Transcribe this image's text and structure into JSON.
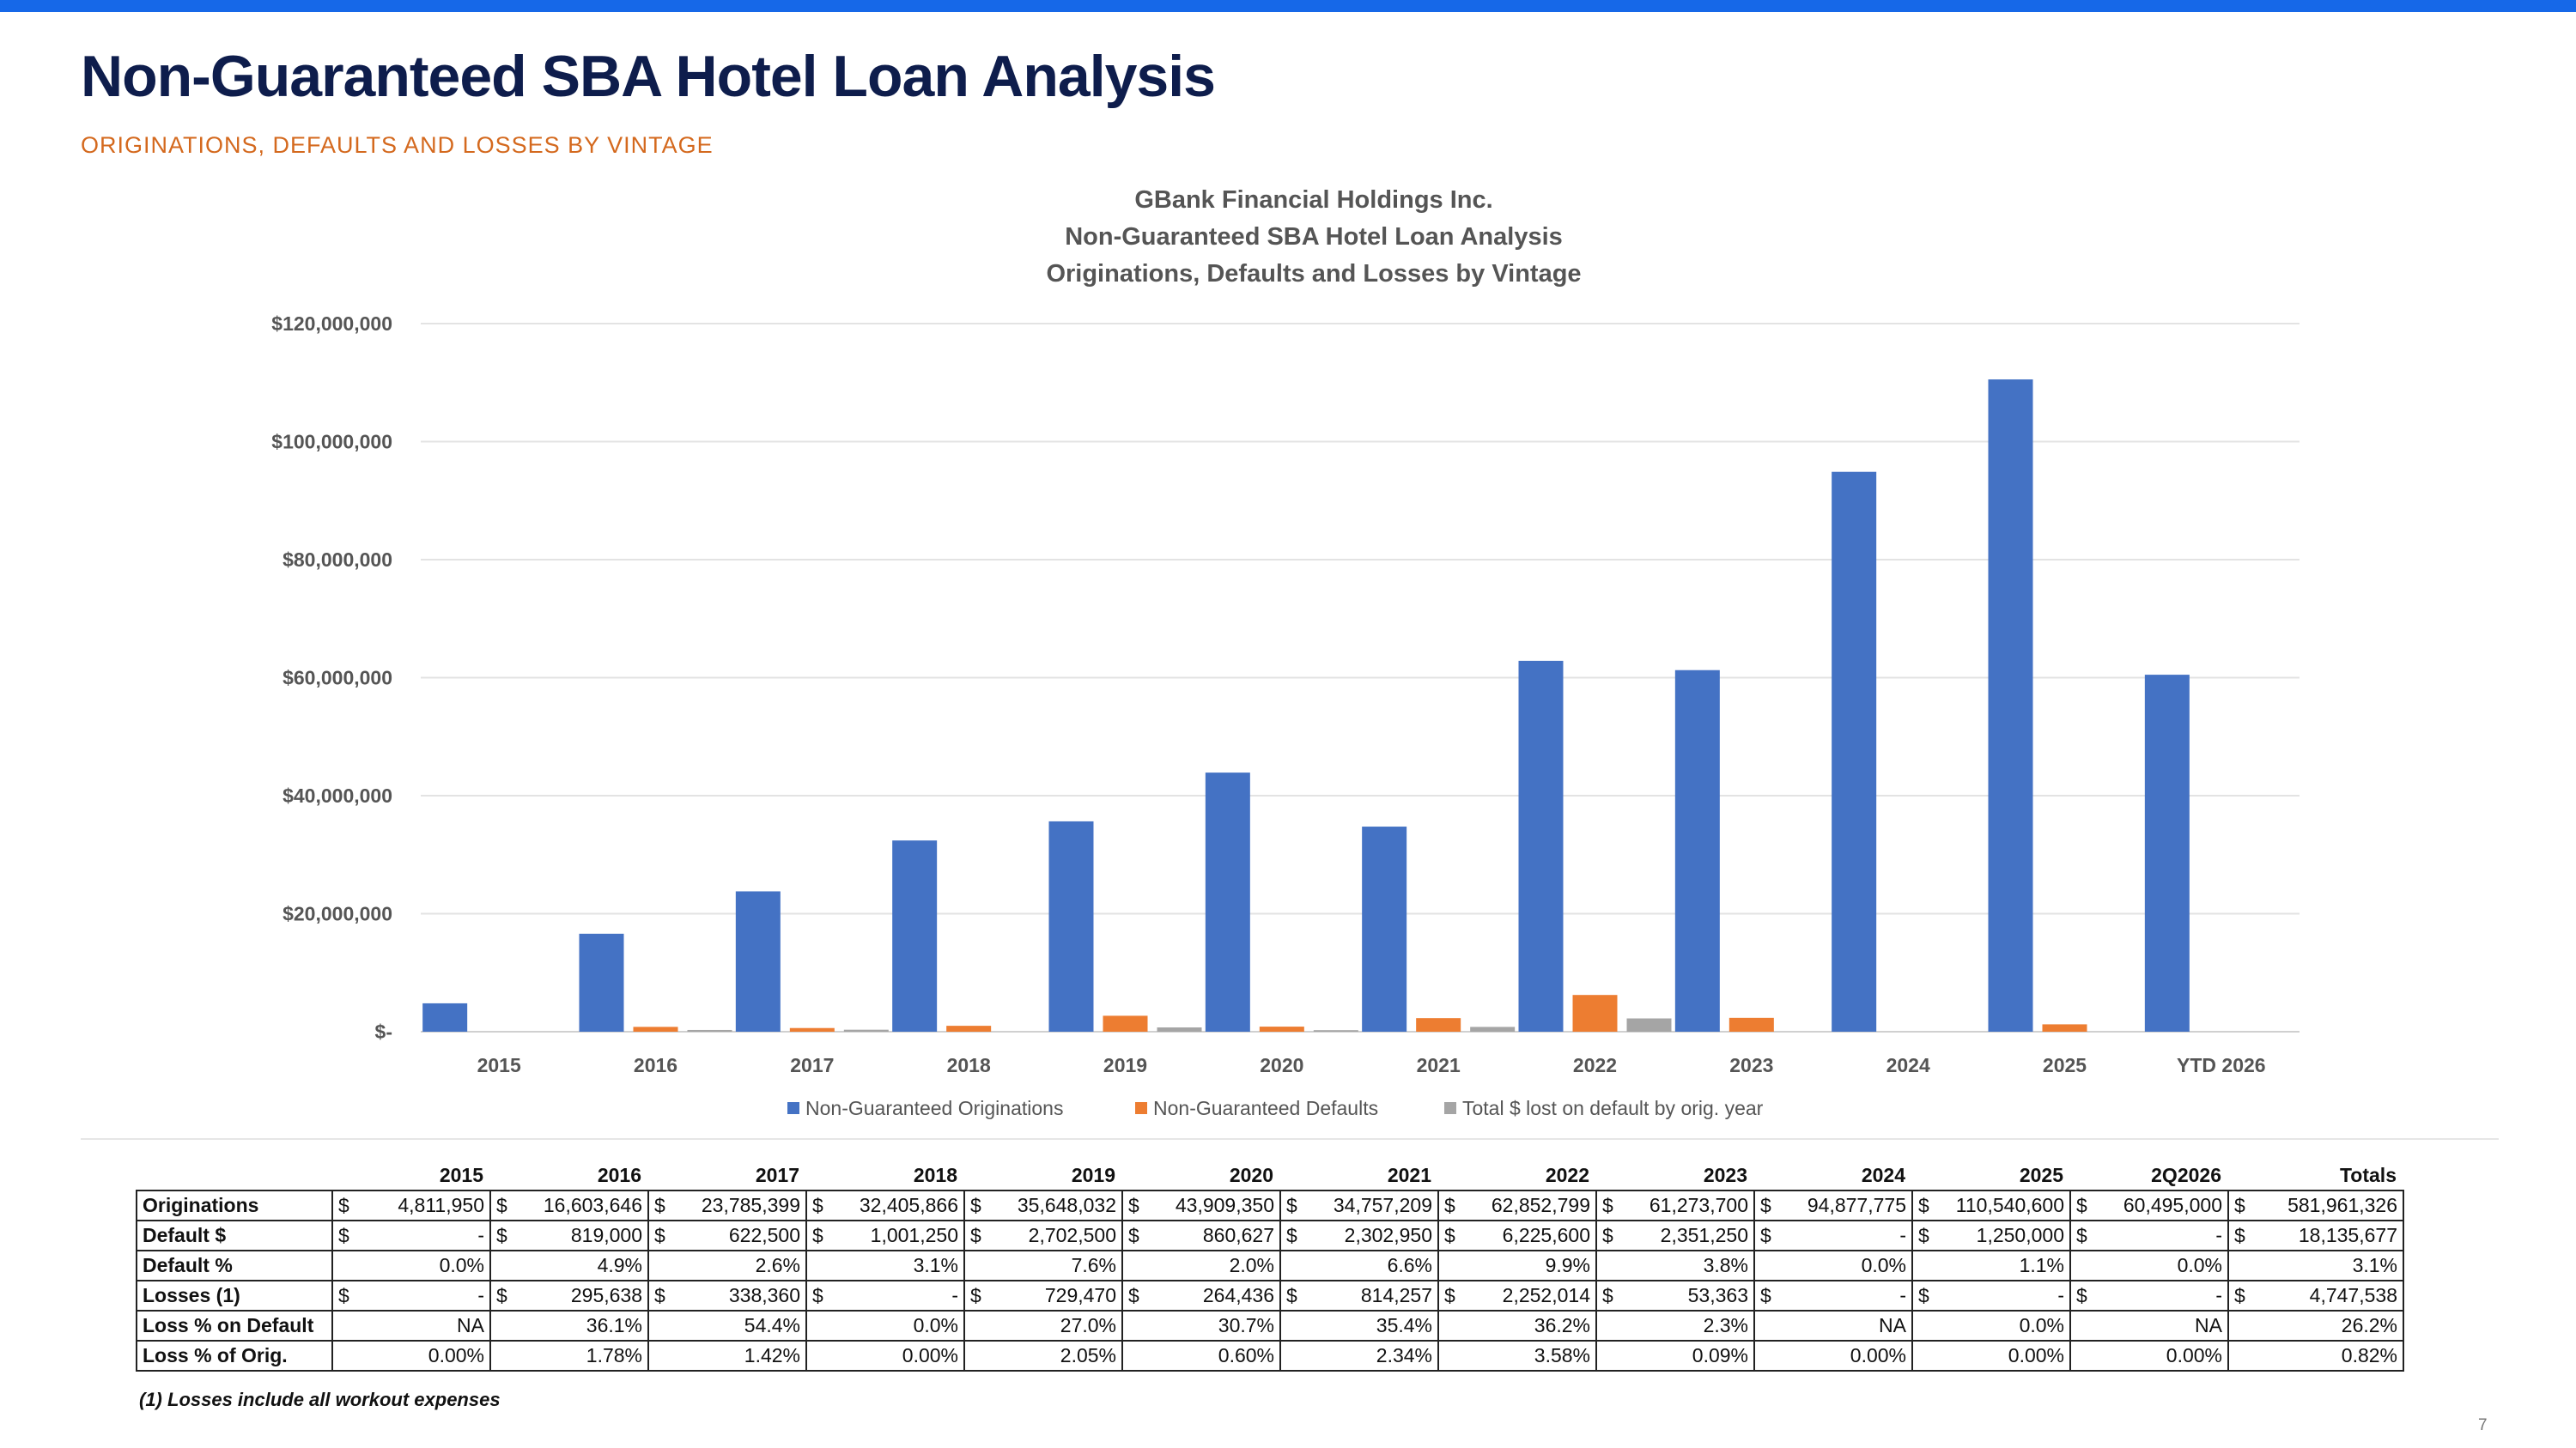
{
  "page": {
    "title": "Non-Guaranteed SBA Hotel Loan Analysis",
    "subtitle": "ORIGINATIONS, DEFAULTS AND LOSSES BY VINTAGE",
    "footnote": "(1) Losses include all workout expenses",
    "page_number": "7"
  },
  "colors": {
    "top_bar": "#1668e8",
    "title": "#0e1d4c",
    "subtitle": "#d4691e",
    "originations": "#4472c4",
    "defaults": "#ed7d31",
    "losses": "#a5a5a5"
  },
  "chart_data": {
    "type": "bar",
    "title_lines": [
      "GBank Financial Holdings Inc.",
      "Non-Guaranteed SBA Hotel Loan Analysis",
      "Originations, Defaults and Losses by Vintage"
    ],
    "categories": [
      "2015",
      "2016",
      "2017",
      "2018",
      "2019",
      "2020",
      "2021",
      "2022",
      "2023",
      "2024",
      "2025",
      "YTD 2026"
    ],
    "series": [
      {
        "name": "Non-Guaranteed Originations",
        "color": "#4472c4",
        "values": [
          4811950,
          16603646,
          23785399,
          32405866,
          35648032,
          43909350,
          34757209,
          62852799,
          61273700,
          94877775,
          110540600,
          60495000
        ]
      },
      {
        "name": "Non-Guaranteed Defaults",
        "color": "#ed7d31",
        "values": [
          0,
          819000,
          622500,
          1001250,
          2702500,
          860627,
          2302950,
          6225600,
          2351250,
          0,
          1250000,
          0
        ]
      },
      {
        "name": "Total $ lost on default by orig. year",
        "color": "#a5a5a5",
        "values": [
          0,
          295638,
          338360,
          0,
          729470,
          264436,
          814257,
          2252014,
          53363,
          0,
          0,
          0
        ]
      }
    ],
    "ylim": [
      0,
      120000000
    ],
    "yticks": [
      0,
      20000000,
      40000000,
      60000000,
      80000000,
      100000000,
      120000000
    ],
    "ytick_labels": [
      "$-",
      "$20,000,000",
      "$40,000,000",
      "$60,000,000",
      "$80,000,000",
      "$100,000,000",
      "$120,000,000"
    ],
    "grid": true,
    "legend_position": "bottom"
  },
  "table": {
    "headers": [
      "2015",
      "2016",
      "2017",
      "2018",
      "2019",
      "2020",
      "2021",
      "2022",
      "2023",
      "2024",
      "2025",
      "2Q2026",
      "Totals"
    ],
    "rows": [
      {
        "label": "Originations",
        "cells": [
          [
            "$",
            "4,811,950"
          ],
          [
            "$",
            "16,603,646"
          ],
          [
            "$",
            "23,785,399"
          ],
          [
            "$",
            "32,405,866"
          ],
          [
            "$",
            "35,648,032"
          ],
          [
            "$",
            "43,909,350"
          ],
          [
            "$",
            "34,757,209"
          ],
          [
            "$",
            "62,852,799"
          ],
          [
            "$",
            "61,273,700"
          ],
          [
            "$",
            "94,877,775"
          ],
          [
            "$",
            "110,540,600"
          ],
          [
            "$",
            "60,495,000"
          ],
          [
            "$",
            "581,961,326"
          ]
        ]
      },
      {
        "label": "Default $",
        "cells": [
          [
            "$",
            "-"
          ],
          [
            "$",
            "819,000"
          ],
          [
            "$",
            "622,500"
          ],
          [
            "$",
            "1,001,250"
          ],
          [
            "$",
            "2,702,500"
          ],
          [
            "$",
            "860,627"
          ],
          [
            "$",
            "2,302,950"
          ],
          [
            "$",
            "6,225,600"
          ],
          [
            "$",
            "2,351,250"
          ],
          [
            "$",
            "-"
          ],
          [
            "$",
            "1,250,000"
          ],
          [
            "$",
            "-"
          ],
          [
            "$",
            "18,135,677"
          ]
        ]
      },
      {
        "label": "Default %",
        "cells": [
          [
            "",
            "0.0%"
          ],
          [
            "",
            "4.9%"
          ],
          [
            "",
            "2.6%"
          ],
          [
            "",
            "3.1%"
          ],
          [
            "",
            "7.6%"
          ],
          [
            "",
            "2.0%"
          ],
          [
            "",
            "6.6%"
          ],
          [
            "",
            "9.9%"
          ],
          [
            "",
            "3.8%"
          ],
          [
            "",
            "0.0%"
          ],
          [
            "",
            "1.1%"
          ],
          [
            "",
            "0.0%"
          ],
          [
            "",
            "3.1%"
          ]
        ]
      },
      {
        "label": "Losses (1)",
        "cells": [
          [
            "$",
            "-"
          ],
          [
            "$",
            "295,638"
          ],
          [
            "$",
            "338,360"
          ],
          [
            "$",
            "-"
          ],
          [
            "$",
            "729,470"
          ],
          [
            "$",
            "264,436"
          ],
          [
            "$",
            "814,257"
          ],
          [
            "$",
            "2,252,014"
          ],
          [
            "$",
            "53,363"
          ],
          [
            "$",
            "-"
          ],
          [
            "$",
            "-"
          ],
          [
            "$",
            "-"
          ],
          [
            "$",
            "4,747,538"
          ]
        ]
      },
      {
        "label": "Loss % on Default",
        "cells": [
          [
            "",
            "NA"
          ],
          [
            "",
            "36.1%"
          ],
          [
            "",
            "54.4%"
          ],
          [
            "",
            "0.0%"
          ],
          [
            "",
            "27.0%"
          ],
          [
            "",
            "30.7%"
          ],
          [
            "",
            "35.4%"
          ],
          [
            "",
            "36.2%"
          ],
          [
            "",
            "2.3%"
          ],
          [
            "",
            "NA"
          ],
          [
            "",
            "0.0%"
          ],
          [
            "",
            "NA"
          ],
          [
            "",
            "26.2%"
          ]
        ]
      },
      {
        "label": "Loss % of Orig.",
        "cells": [
          [
            "",
            "0.00%"
          ],
          [
            "",
            "1.78%"
          ],
          [
            "",
            "1.42%"
          ],
          [
            "",
            "0.00%"
          ],
          [
            "",
            "2.05%"
          ],
          [
            "",
            "0.60%"
          ],
          [
            "",
            "2.34%"
          ],
          [
            "",
            "3.58%"
          ],
          [
            "",
            "0.09%"
          ],
          [
            "",
            "0.00%"
          ],
          [
            "",
            "0.00%"
          ],
          [
            "",
            "0.00%"
          ],
          [
            "",
            "0.82%"
          ]
        ]
      }
    ]
  }
}
